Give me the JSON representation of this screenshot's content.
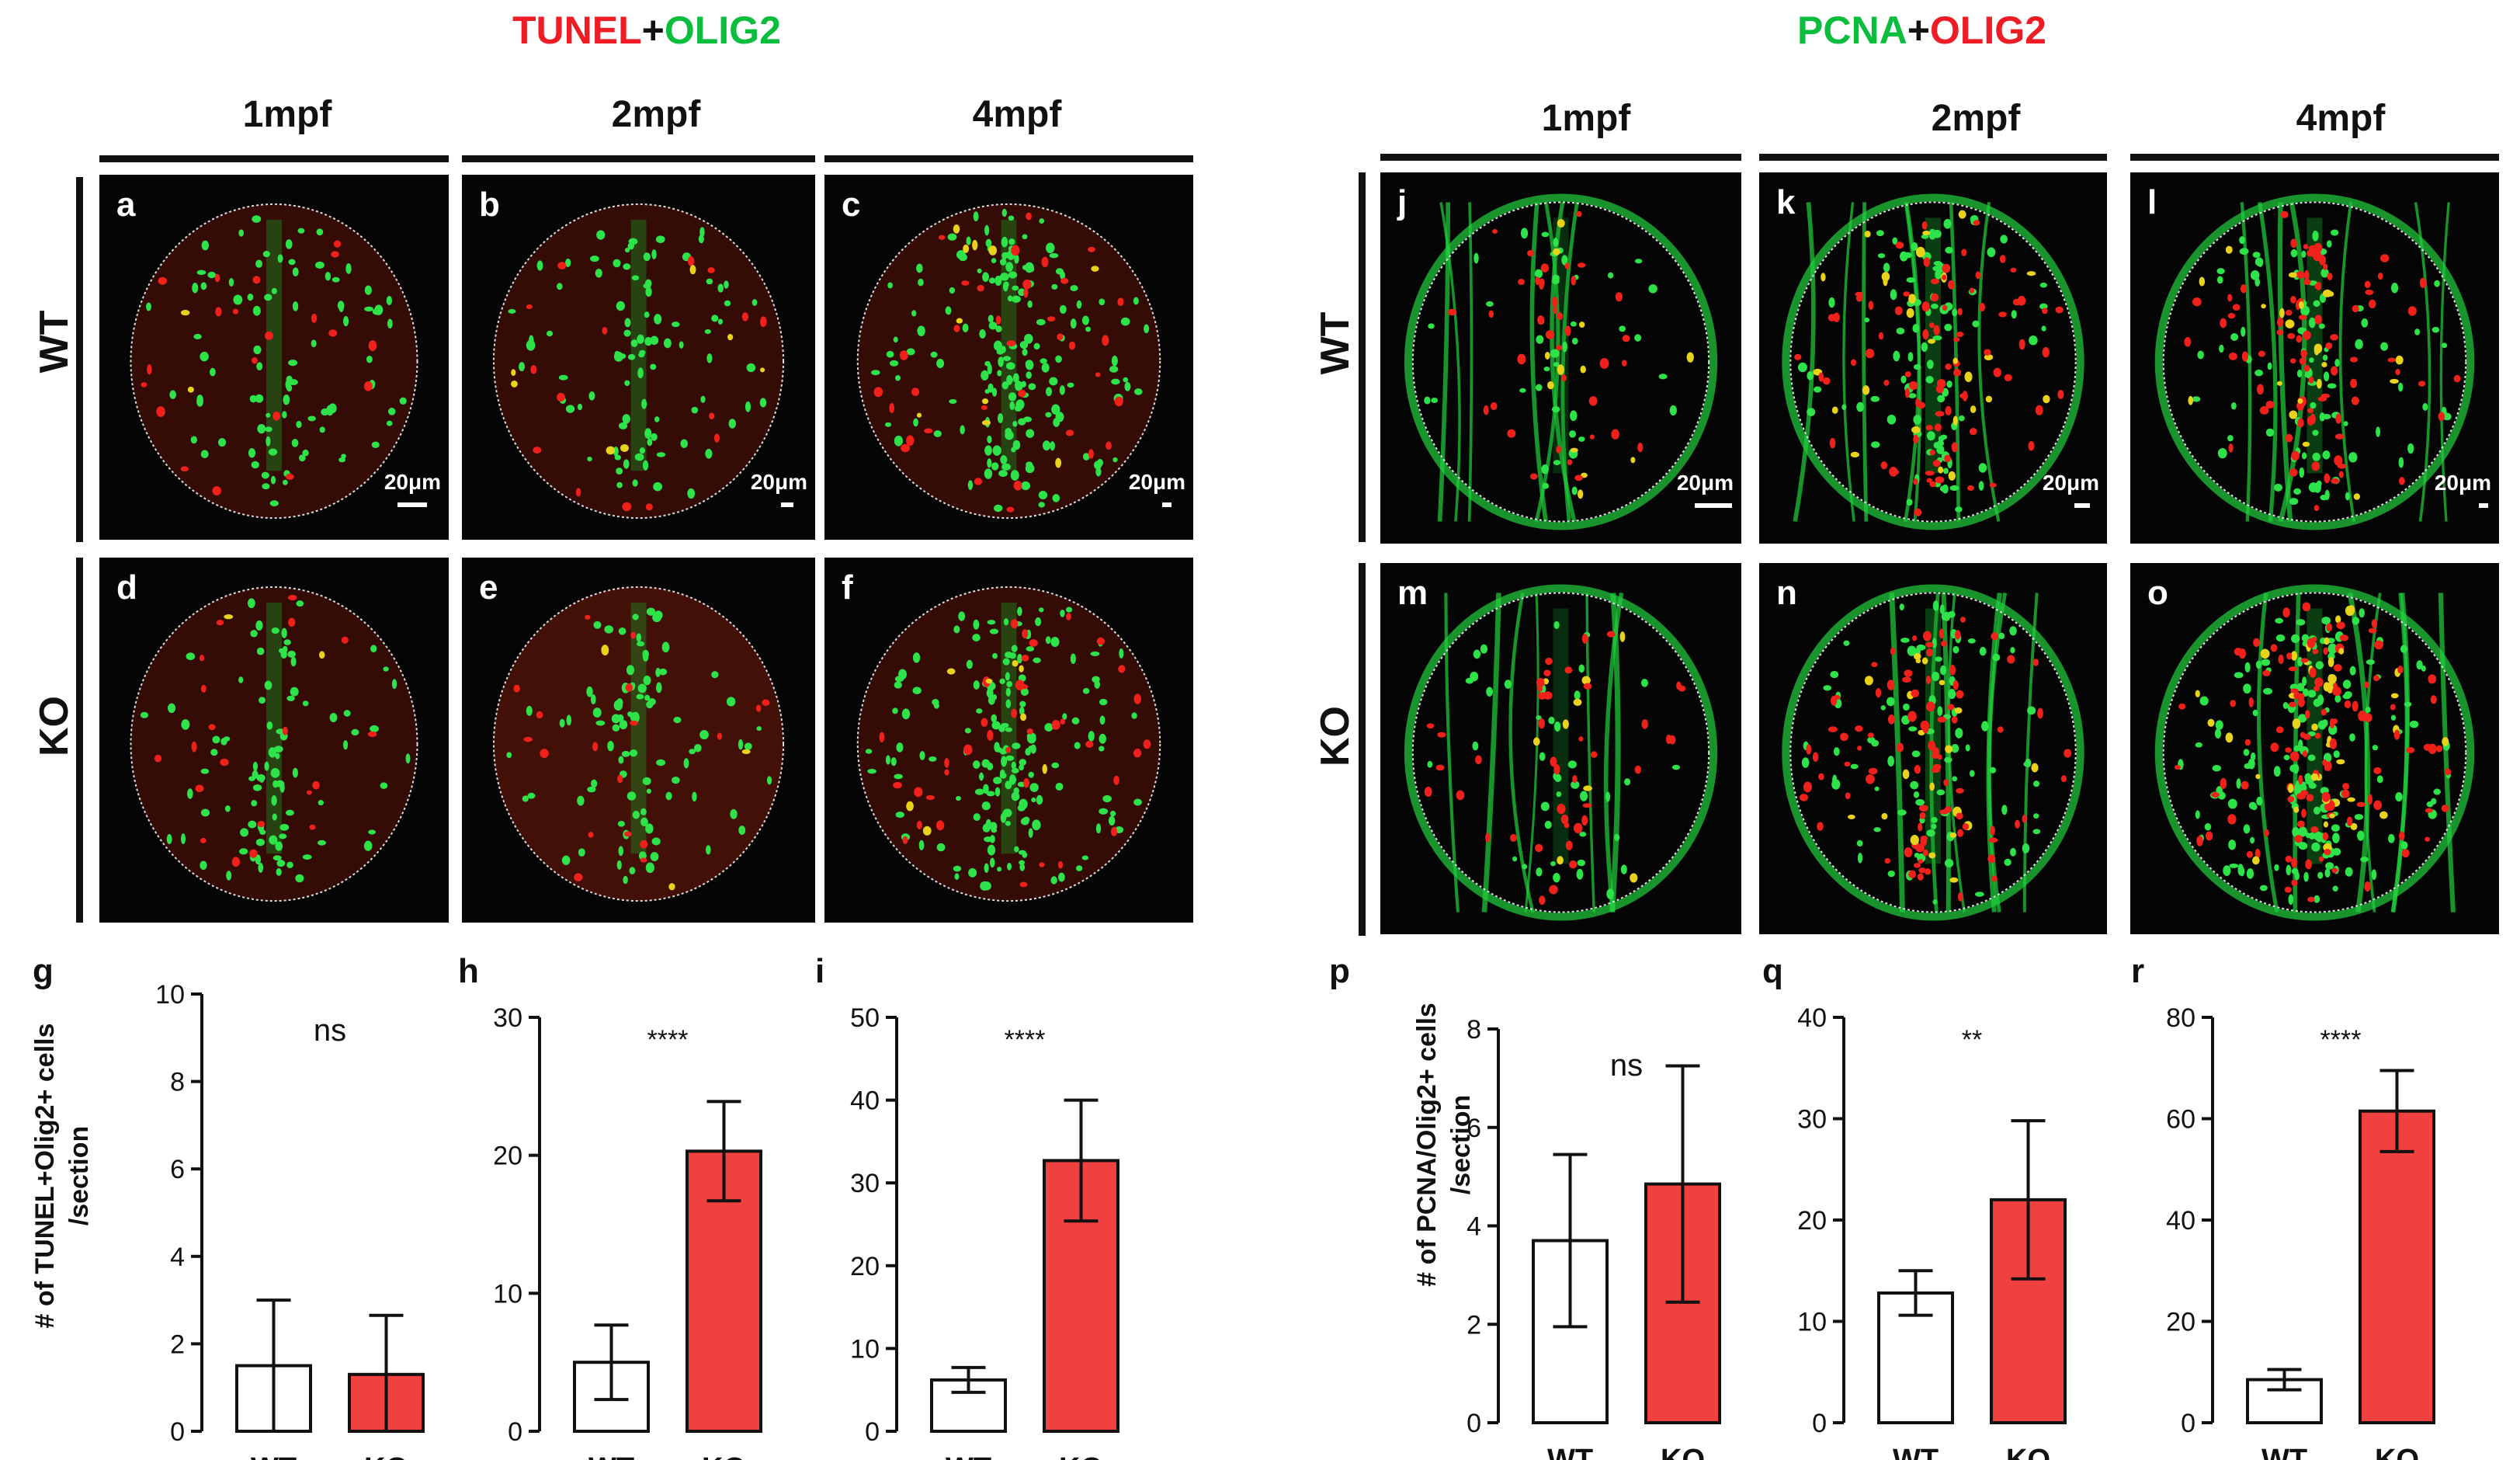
{
  "left_figure": {
    "title_part1": "TUNEL",
    "title_plus": "+",
    "title_part2": "OLIG2",
    "columns": [
      "1mpf",
      "2mpf",
      "4mpf"
    ],
    "rows": [
      "WT",
      "KO"
    ],
    "panels": [
      "a",
      "b",
      "c",
      "d",
      "e",
      "f"
    ],
    "scale_bar": "20μm",
    "y_axis_label": "# of TUNEL+Olig2+ cells\n/section"
  },
  "right_figure": {
    "title_part1": "PCNA",
    "title_plus": "+",
    "title_part2": "OLIG2",
    "columns": [
      "1mpf",
      "2mpf",
      "4mpf"
    ],
    "rows": [
      "WT",
      "KO"
    ],
    "panels": [
      "j",
      "k",
      "l",
      "m",
      "n",
      "o"
    ],
    "scale_bar": "20μm",
    "y_axis_label": "# of PCNA/Olig2+ cells\n/section"
  },
  "colors": {
    "title_red": "#ee1c25",
    "title_green": "#0bbd3c",
    "ko_bar": "#f0403f",
    "wt_bar": "#ffffff",
    "micrograph_bg": "#050505"
  },
  "chart_data": [
    {
      "panel": "g",
      "type": "bar",
      "categories": [
        "WT",
        "KO"
      ],
      "values": [
        1.5,
        1.3
      ],
      "errors": [
        1.5,
        1.35
      ],
      "ylim": [
        0,
        10
      ],
      "yticks": [
        0,
        2,
        4,
        6,
        8,
        10
      ],
      "significance": "ns",
      "ylabel": "# of TUNEL+Olig2+ cells /section"
    },
    {
      "panel": "h",
      "type": "bar",
      "categories": [
        "WT",
        "KO"
      ],
      "values": [
        5.0,
        20.3
      ],
      "errors": [
        2.7,
        3.6
      ],
      "ylim": [
        0,
        30
      ],
      "yticks": [
        0,
        10,
        20,
        30
      ],
      "significance": "****"
    },
    {
      "panel": "i",
      "type": "bar",
      "categories": [
        "WT",
        "KO"
      ],
      "values": [
        6.2,
        32.7
      ],
      "errors": [
        1.5,
        7.3
      ],
      "ylim": [
        0,
        50
      ],
      "yticks": [
        0,
        10,
        20,
        30,
        40,
        50
      ],
      "significance": "****"
    },
    {
      "panel": "p",
      "type": "bar",
      "categories": [
        "WT",
        "KO"
      ],
      "values": [
        3.7,
        4.85
      ],
      "errors": [
        1.75,
        2.4
      ],
      "ylim": [
        0,
        8
      ],
      "yticks": [
        0,
        2,
        4,
        6,
        8
      ],
      "significance": "ns",
      "ylabel": "# of PCNA/Olig2+ cells /section"
    },
    {
      "panel": "q",
      "type": "bar",
      "categories": [
        "WT",
        "KO"
      ],
      "values": [
        12.8,
        22.0
      ],
      "errors": [
        2.2,
        7.8
      ],
      "ylim": [
        0,
        40
      ],
      "yticks": [
        0,
        10,
        20,
        30,
        40
      ],
      "significance": "**"
    },
    {
      "panel": "r",
      "type": "bar",
      "categories": [
        "WT",
        "KO"
      ],
      "values": [
        8.5,
        61.5
      ],
      "errors": [
        2.0,
        8.0
      ],
      "ylim": [
        0,
        80
      ],
      "yticks": [
        0,
        20,
        40,
        60,
        80
      ],
      "significance": "****"
    }
  ]
}
